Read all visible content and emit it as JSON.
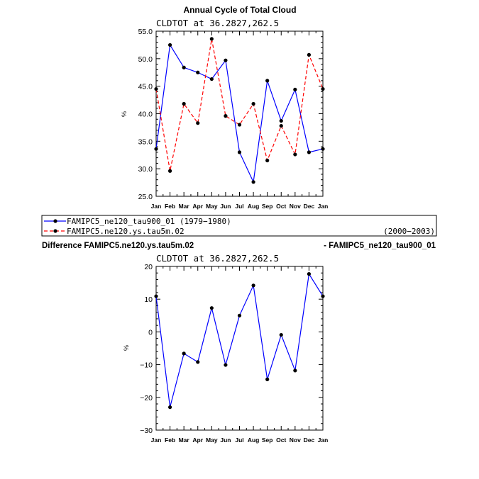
{
  "title": "Annual Cycle of Total Cloud",
  "chart_data": [
    {
      "type": "line",
      "subtitle": "CLDTOT at 36.2827,262.5",
      "ylabel": "%",
      "ylim": [
        25,
        55
      ],
      "yticks": [
        25,
        30,
        35,
        40,
        45,
        50,
        55
      ],
      "ytick_labels": [
        "25.0",
        "30.0",
        "35.0",
        "40.0",
        "45.0",
        "50.0",
        "55.0"
      ],
      "categories": [
        "Jan",
        "Feb",
        "Mar",
        "Apr",
        "May",
        "Jun",
        "Jul",
        "Aug",
        "Sep",
        "Oct",
        "Nov",
        "Dec",
        "Jan"
      ],
      "series": [
        {
          "name": "FAMIPC5_ne120_tau900_01 (1979-1980)",
          "color": "#0000ff",
          "dash": "solid",
          "values": [
            33.6,
            52.5,
            48.4,
            47.5,
            46.3,
            49.7,
            33.0,
            27.6,
            46.0,
            38.7,
            44.4,
            33.0,
            33.6
          ]
        },
        {
          "name": "FAMIPC5.ne120.ys.tau5m.02",
          "period": "(2000-2003)",
          "color": "#ff0000",
          "dash": "dashed",
          "values": [
            44.5,
            29.6,
            41.8,
            38.3,
            53.6,
            39.6,
            38.0,
            41.8,
            31.5,
            37.8,
            32.6,
            50.7,
            44.5
          ]
        }
      ]
    },
    {
      "type": "line",
      "subtitle": "CLDTOT at 36.2827,262.5",
      "ylabel": "%",
      "ylim": [
        -30,
        20
      ],
      "yticks": [
        -30,
        -20,
        -10,
        0,
        10,
        20
      ],
      "ytick_labels": [
        "−30",
        "−20",
        "−10",
        "0",
        "10",
        "20"
      ],
      "categories": [
        "Jan",
        "Feb",
        "Mar",
        "Apr",
        "May",
        "Jun",
        "Jul",
        "Aug",
        "Sep",
        "Oct",
        "Nov",
        "Dec",
        "Jan"
      ],
      "series": [
        {
          "name": "Difference",
          "color": "#0000ff",
          "dash": "solid",
          "values": [
            10.9,
            -23.0,
            -6.6,
            -9.2,
            7.3,
            -10.1,
            5.0,
            14.2,
            -14.5,
            -0.9,
            -11.8,
            17.7,
            10.9
          ]
        }
      ]
    }
  ],
  "legend": {
    "entry1": "FAMIPC5_ne120_tau900_01 (1979−1980)",
    "entry2": "FAMIPC5.ne120.ys.tau5m.02",
    "entry2_period": "(2000−2003)"
  },
  "difference": {
    "left": "Difference FAMIPC5.ne120.ys.tau5m.02",
    "right": "- FAMIPC5_ne120_tau900_01"
  }
}
